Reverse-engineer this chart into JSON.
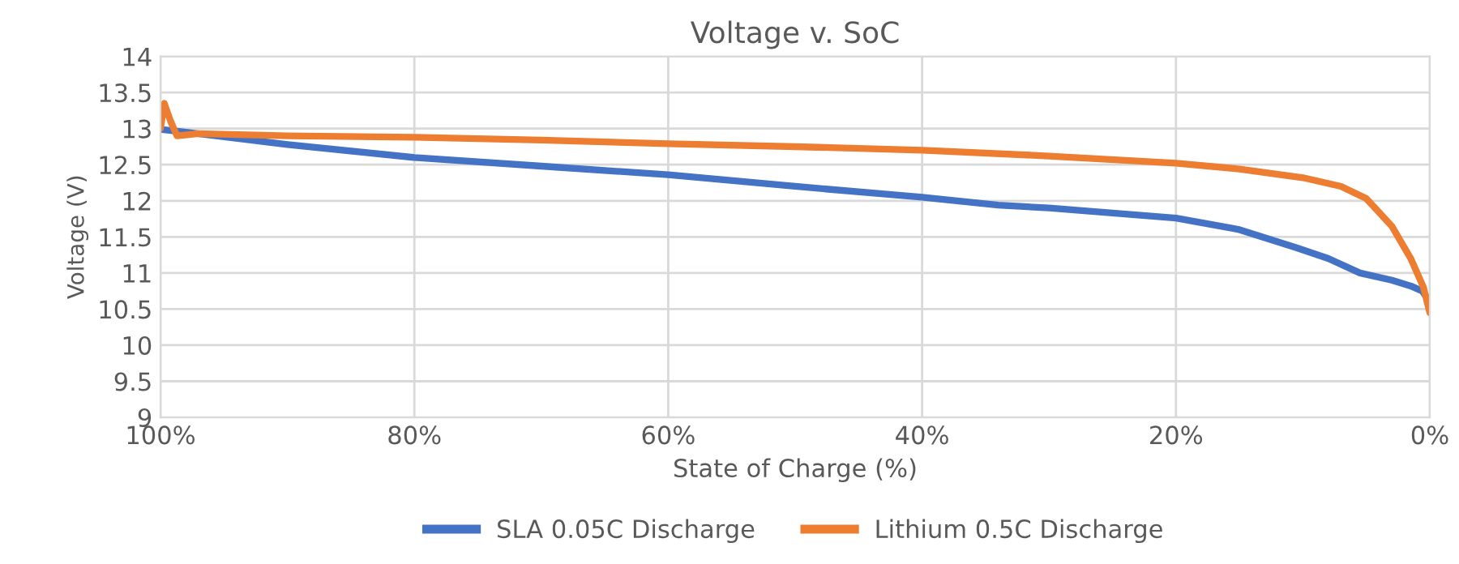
{
  "chart_data": {
    "type": "line",
    "title": "Voltage v. SoC",
    "xlabel": "State of Charge (%)",
    "ylabel": "Voltage (V)",
    "xlim": [
      100,
      0
    ],
    "xticks": [
      {
        "value": 100,
        "label": "100%"
      },
      {
        "value": 80,
        "label": "80%"
      },
      {
        "value": 60,
        "label": "60%"
      },
      {
        "value": 40,
        "label": "40%"
      },
      {
        "value": 20,
        "label": "20%"
      },
      {
        "value": 0,
        "label": "0%"
      }
    ],
    "ylim": [
      9,
      14
    ],
    "yticks": [
      9,
      9.5,
      10,
      10.5,
      11,
      11.5,
      12,
      12.5,
      13,
      13.5,
      14
    ],
    "grid": true,
    "legend": "bottom",
    "marker": "none",
    "line_style": "solid",
    "series": [
      {
        "name": "SLA 0.05C Discharge",
        "color": "#4472c4",
        "x": [
          100,
          98,
          90,
          80,
          70,
          60,
          50,
          40,
          34,
          30,
          20,
          15,
          10.5,
          8,
          5.5,
          3,
          1.5,
          0.6,
          0
        ],
        "values": [
          12.99,
          12.95,
          12.78,
          12.6,
          12.48,
          12.36,
          12.2,
          12.05,
          11.94,
          11.9,
          11.76,
          11.6,
          11.35,
          11.2,
          11.0,
          10.9,
          10.82,
          10.75,
          10.6
        ]
      },
      {
        "name": "Lithium 0.5C Discharge",
        "color": "#ed7d31",
        "x": [
          100,
          99.7,
          99.2,
          98.7,
          97,
          90,
          80,
          70,
          60,
          50,
          40,
          30,
          20,
          15,
          10,
          7,
          5,
          3,
          1.5,
          0.5,
          0
        ],
        "values": [
          13.0,
          13.35,
          13.1,
          12.9,
          12.93,
          12.9,
          12.88,
          12.84,
          12.79,
          12.75,
          12.7,
          12.62,
          12.52,
          12.44,
          12.32,
          12.2,
          12.03,
          11.65,
          11.2,
          10.8,
          10.45
        ]
      }
    ]
  }
}
